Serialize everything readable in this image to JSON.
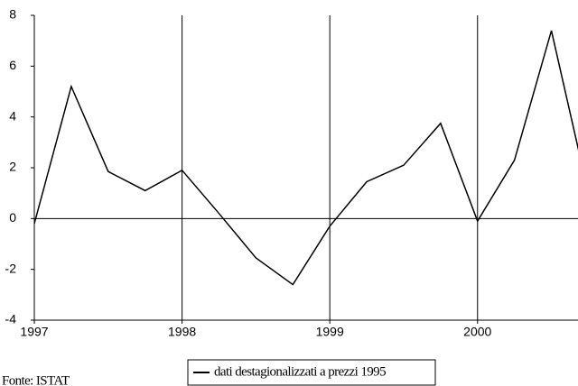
{
  "chart_data": {
    "type": "line",
    "x": [
      1997,
      1997.25,
      1997.5,
      1997.75,
      1998,
      1998.25,
      1998.5,
      1998.75,
      1999,
      1999.25,
      1999.5,
      1999.75,
      2000,
      2000.25,
      2000.5,
      2000.75
    ],
    "series": [
      {
        "name": "dati destagionalizzati a prezzi 1995",
        "color": "#000000",
        "values": [
          -0.2,
          5.2,
          1.85,
          1.1,
          1.9,
          0.2,
          -1.55,
          -2.6,
          -0.3,
          1.45,
          2.1,
          3.75,
          -0.1,
          2.3,
          7.4,
          1.0
        ]
      }
    ],
    "xlim": [
      1997,
      2000.68
    ],
    "xticks": [
      1997,
      1998,
      1999,
      2000
    ],
    "ylim": [
      -4,
      8
    ],
    "yticks": [
      -4,
      -2,
      0,
      2,
      4,
      6,
      8
    ],
    "grid": true,
    "source": "Fonte: ISTAT",
    "legend": "bottom"
  }
}
